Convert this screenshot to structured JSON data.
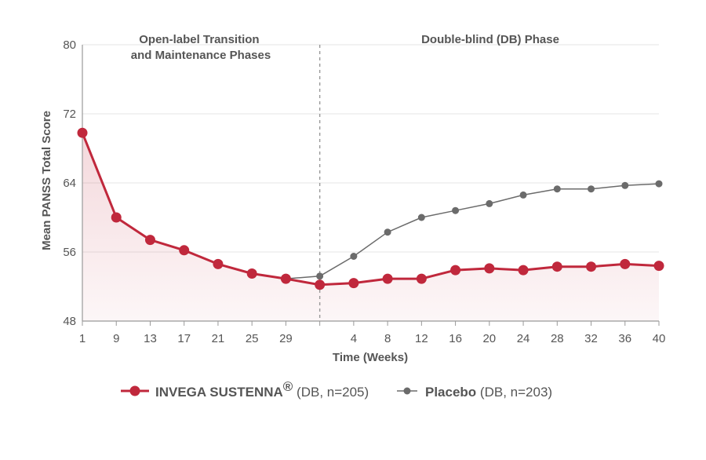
{
  "chart_data": {
    "type": "line",
    "ylabel": "Mean PANSS Total Score",
    "xlabel": "Time (Weeks)",
    "ylim": [
      48,
      80
    ],
    "yticks": [
      "80",
      "72",
      "64",
      "56",
      "48"
    ],
    "xticks": [
      "1",
      "9",
      "13",
      "17",
      "21",
      "25",
      "29",
      "",
      "4",
      "8",
      "12",
      "16",
      "20",
      "24",
      "28",
      "32",
      "36",
      "40"
    ],
    "phases": [
      {
        "lines": [
          "Open-label Transition",
          "and Maintenance Phases"
        ]
      },
      {
        "lines": [
          "Double-blind (DB) Phase"
        ]
      }
    ],
    "series": [
      {
        "name": "INVEGA SUSTENNA",
        "superscript": "®",
        "detail": " (DB, n=205)",
        "color": "#c0283c",
        "values": [
          69.8,
          60.0,
          57.4,
          56.2,
          54.6,
          53.5,
          52.9,
          52.2,
          52.4,
          52.9,
          52.9,
          53.9,
          54.1,
          53.9,
          54.3,
          54.3,
          54.6,
          54.4
        ]
      },
      {
        "name": "Placebo",
        "superscript": "",
        "detail": " (DB, n=203)",
        "color": "#6b6b6b",
        "start_index": 6,
        "values": [
          null,
          null,
          null,
          null,
          null,
          null,
          52.9,
          53.2,
          55.5,
          58.3,
          60.0,
          60.8,
          61.6,
          62.6,
          63.3,
          63.3,
          63.7,
          63.9
        ]
      }
    ],
    "grid": true,
    "legend_position": "bottom"
  }
}
